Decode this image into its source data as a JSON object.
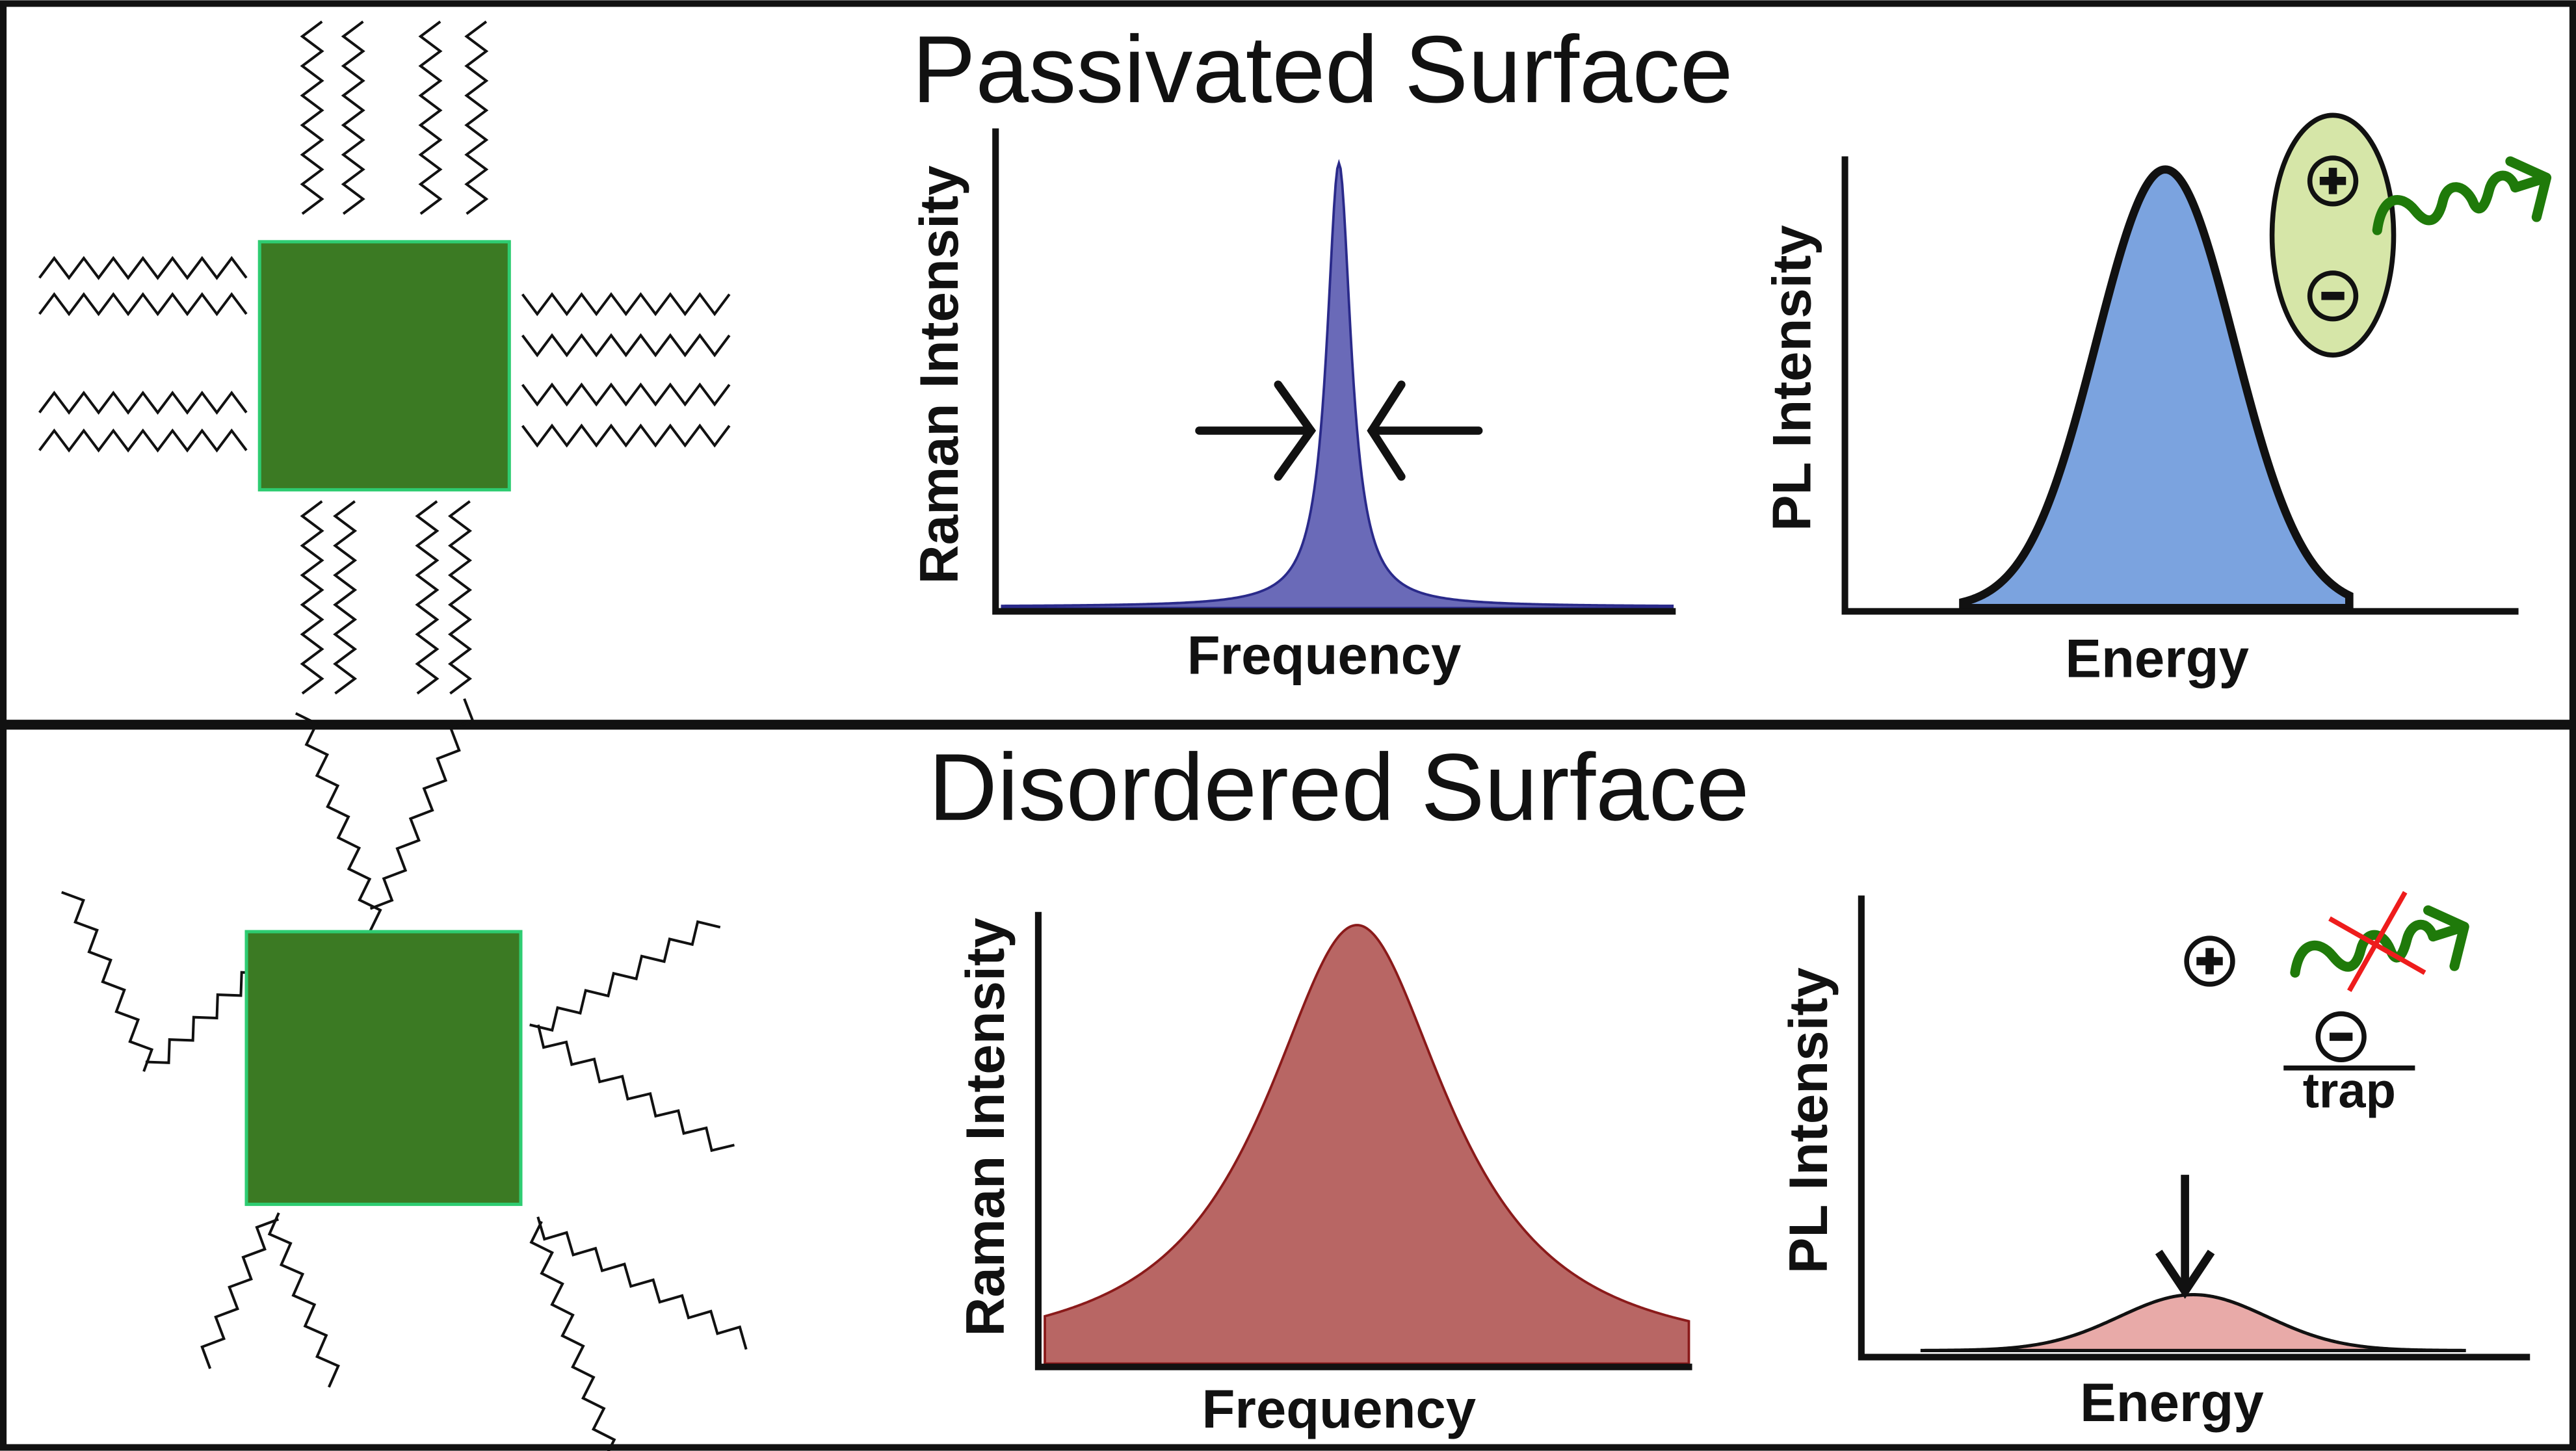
{
  "panels": [
    {
      "title": "Passivated Surface",
      "raman": {
        "xlabel": "Frequency",
        "ylabel": "Raman Intensity",
        "peak": "narrow",
        "color": "#6a6ab8"
      },
      "pl": {
        "xlabel": "Energy",
        "ylabel": "PL Intensity",
        "peak": "strong",
        "color": "#7ba3df"
      }
    },
    {
      "title": "Disordered Surface",
      "raman": {
        "xlabel": "Frequency",
        "ylabel": "Raman Intensity",
        "peak": "broad",
        "color": "#b86664"
      },
      "pl": {
        "xlabel": "Energy",
        "ylabel": "PL Intensity",
        "peak": "weak",
        "color": "#e8aaa8"
      },
      "trap_label": "trap"
    }
  ],
  "colors": {
    "nanocrystal": "#3b7a23",
    "nanocrystal_edge": "#2ecc71",
    "exciton": "#d6e6a8",
    "photon": "#1f7a0a",
    "cross": "#ee1c1c"
  }
}
